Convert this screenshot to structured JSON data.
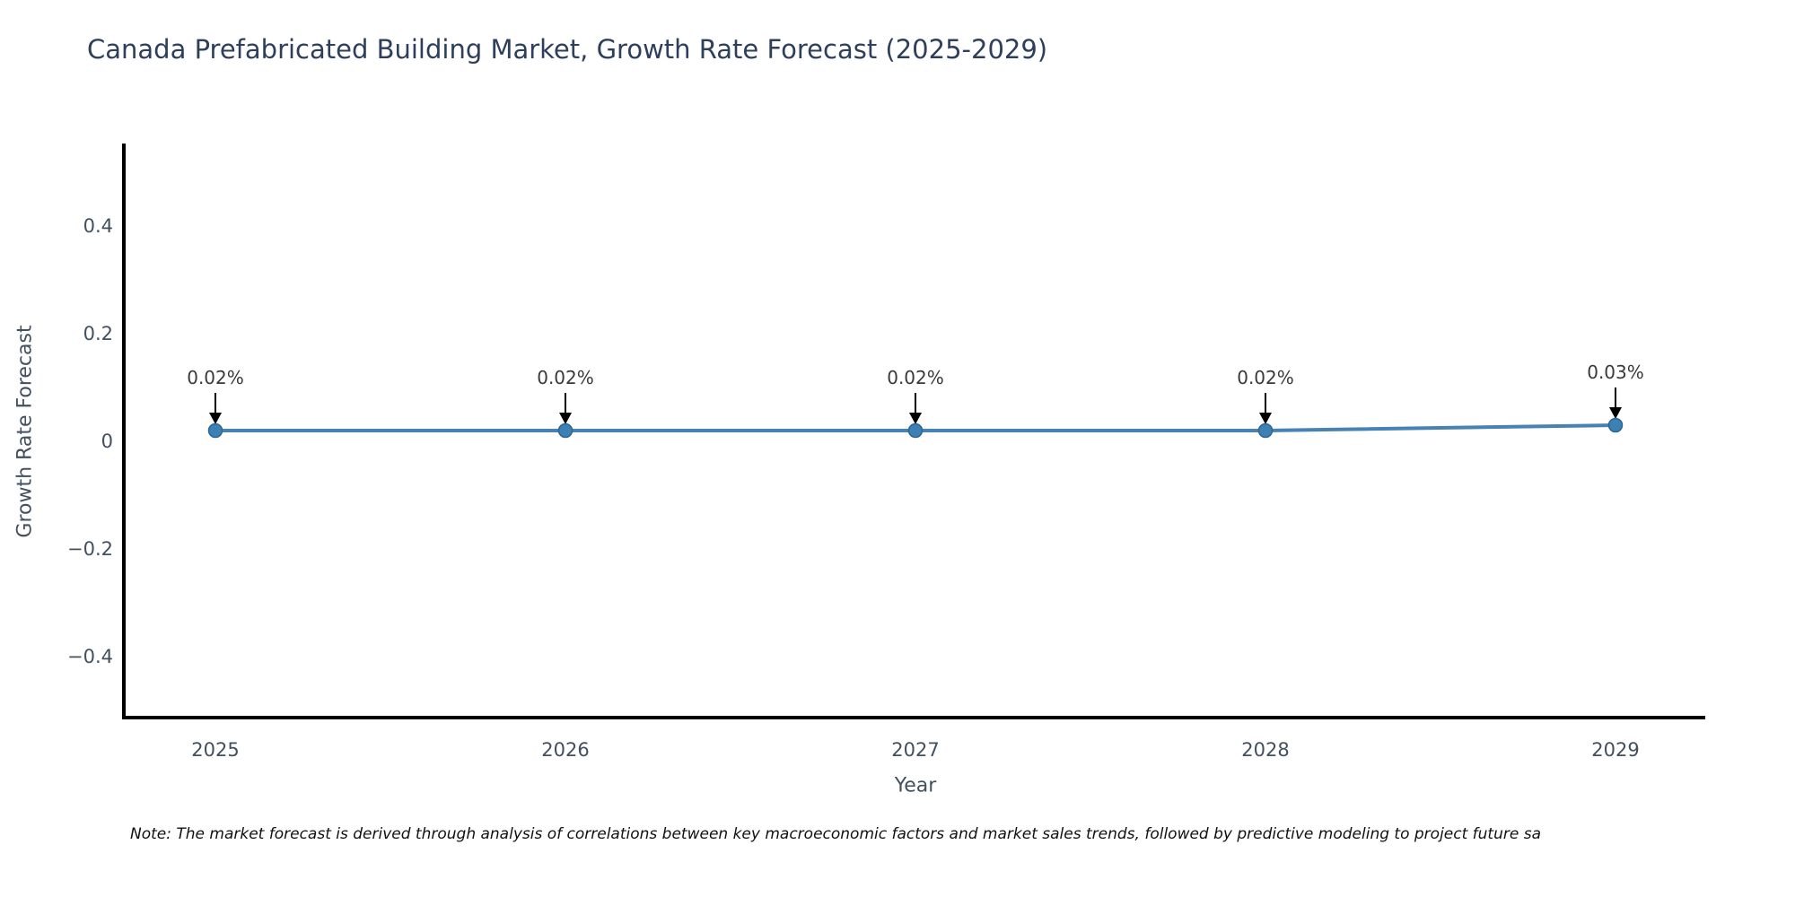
{
  "title": "Canada Prefabricated Building Market, Growth Rate Forecast (2025-2029)",
  "footnote": "Note: The market forecast is derived through analysis of correlations between key macroeconomic factors and market sales trends, followed by predictive modeling to project future sa",
  "chart_data": {
    "type": "line",
    "x": [
      2025,
      2026,
      2027,
      2028,
      2029
    ],
    "values": [
      0.02,
      0.02,
      0.02,
      0.02,
      0.03
    ],
    "point_labels": [
      "0.02%",
      "0.02%",
      "0.02%",
      "0.02%",
      "0.03%"
    ],
    "xlabel": "Year",
    "ylabel": "Growth Rate Forecast",
    "xtick_labels": [
      "2025",
      "2026",
      "2027",
      "2028",
      "2029"
    ],
    "yticks": [
      0.4,
      0.2,
      0,
      -0.2,
      -0.4
    ],
    "ytick_labels": [
      "0.4",
      "0.2",
      "0",
      "−0.2",
      "−0.4"
    ],
    "ylim": [
      -0.51,
      0.55
    ],
    "grid": false,
    "legend": "none",
    "colors": {
      "line": "#4682b4",
      "marker_fill": "#3d80b4",
      "marker_edge": "#2c6592",
      "annotation_text": "#3a3a3a",
      "arrow": "#000000",
      "axis": "#000000",
      "tick_label": "#42505f",
      "title": "#2e3f5c"
    }
  }
}
